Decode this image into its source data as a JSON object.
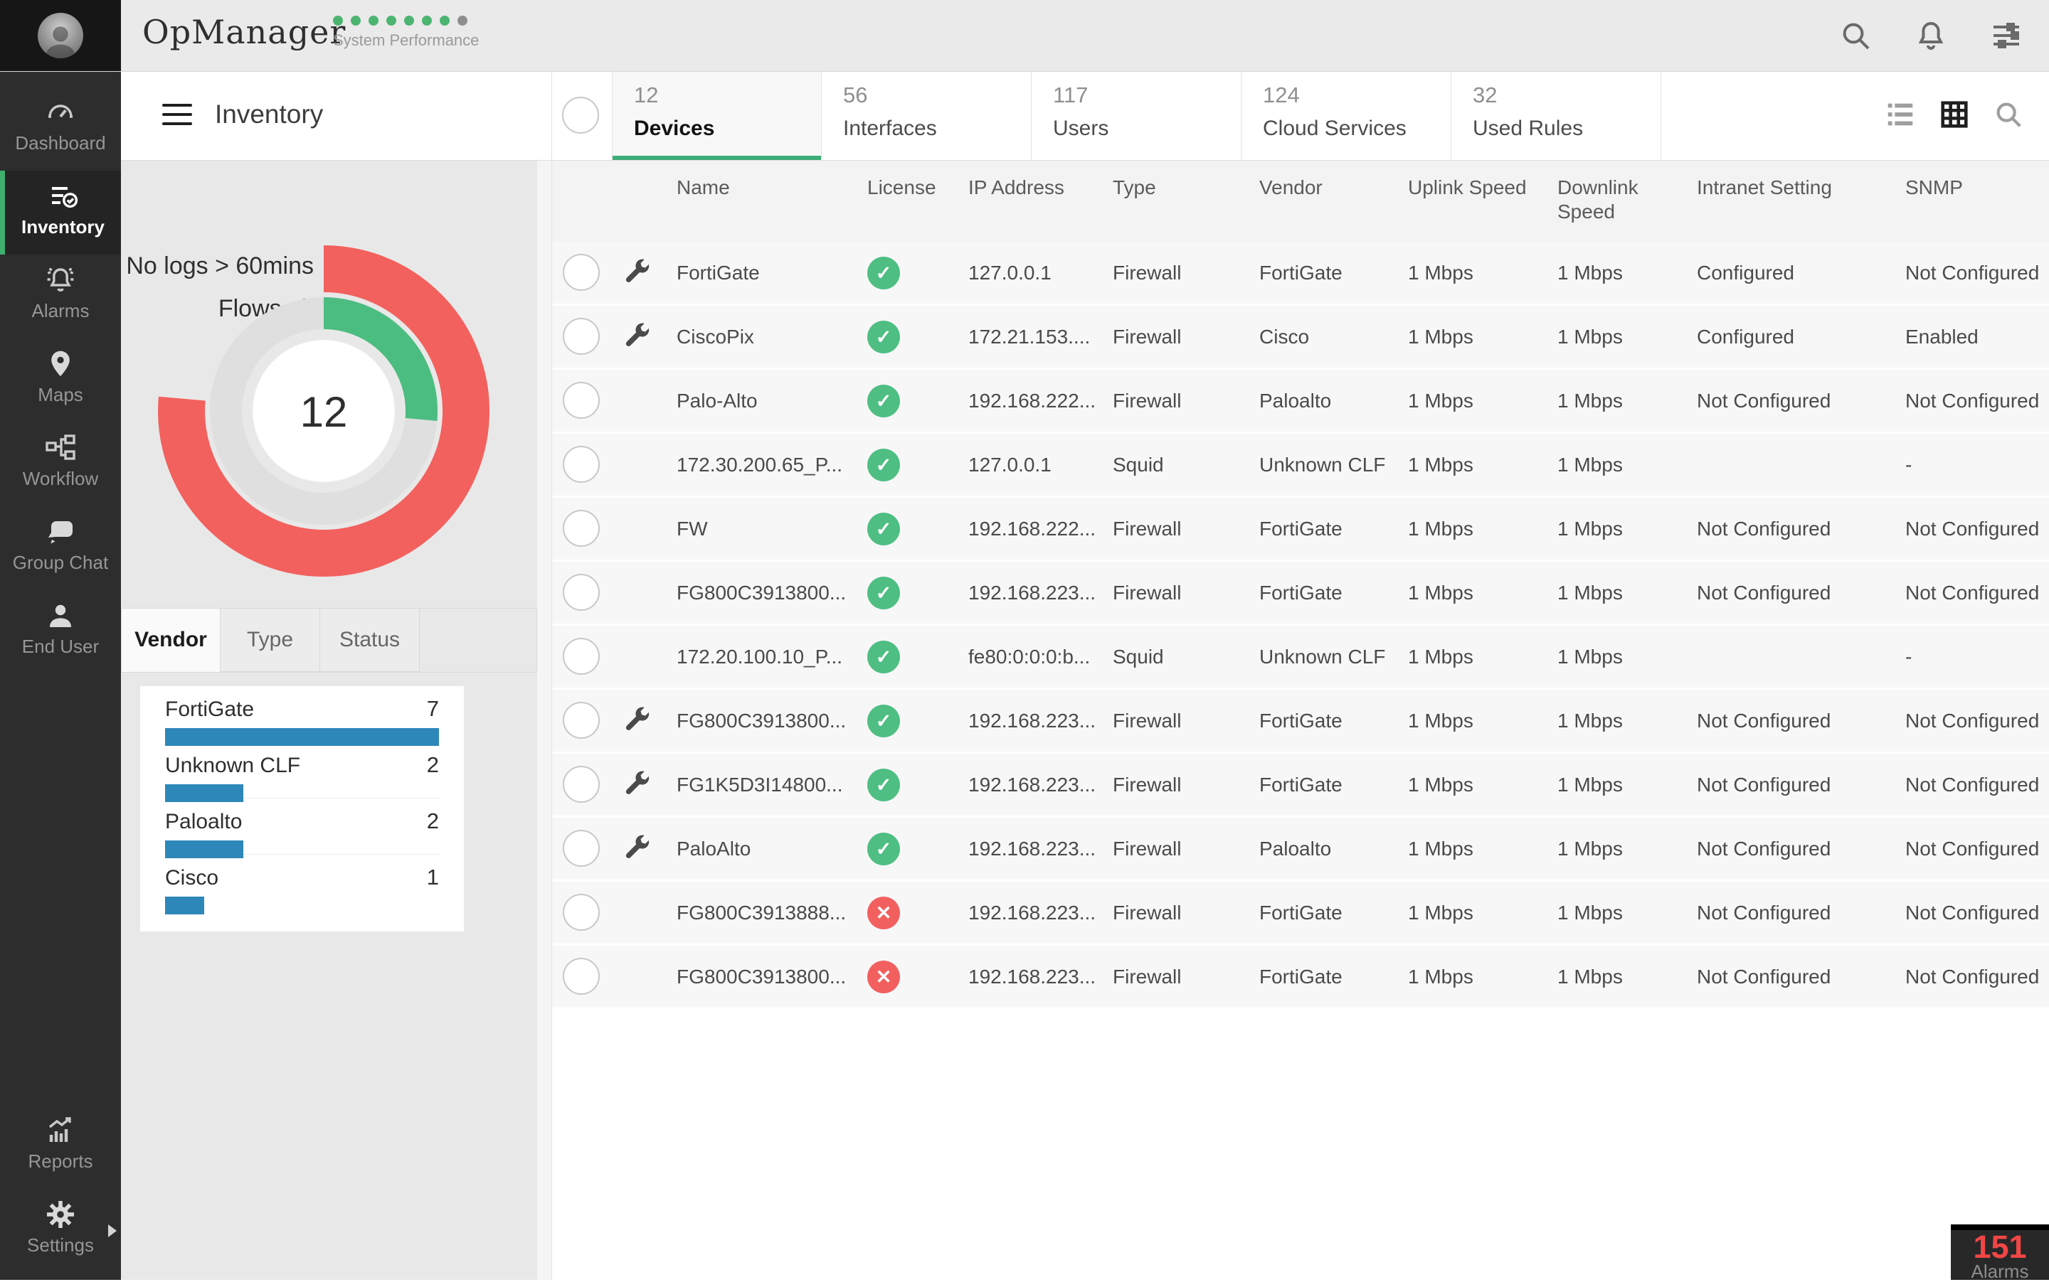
{
  "app": {
    "logo": "OpManager",
    "tagline": "System Performance",
    "performance_dots": {
      "total": 8,
      "active": 7,
      "active_color": "#4cb471",
      "inactive_color": "#8e8e8e"
    }
  },
  "topbar": {
    "icons": [
      "search",
      "notifications",
      "preferences"
    ]
  },
  "sidebar": {
    "items": [
      {
        "label": "Dashboard",
        "icon": "gauge",
        "active": false
      },
      {
        "label": "Inventory",
        "icon": "inventory",
        "active": true
      },
      {
        "label": "Alarms",
        "icon": "bell",
        "active": false
      },
      {
        "label": "Maps",
        "icon": "pin",
        "active": false
      },
      {
        "label": "Workflow",
        "icon": "workflow",
        "active": false
      },
      {
        "label": "Group Chat",
        "icon": "chat",
        "active": false
      },
      {
        "label": "End User",
        "icon": "user",
        "active": false
      }
    ],
    "bottom_items": [
      {
        "label": "Reports",
        "icon": "reports",
        "active": false,
        "has_submenu_arrow": false
      },
      {
        "label": "Settings",
        "icon": "gear",
        "active": false,
        "has_submenu_arrow": true
      }
    ]
  },
  "header": {
    "title": "Inventory"
  },
  "view_switcher": [
    {
      "name": "list-view",
      "active": false
    },
    {
      "name": "grid-view",
      "active": true
    },
    {
      "name": "search",
      "active": false
    }
  ],
  "tabs": [
    {
      "count": "12",
      "label": "Devices",
      "active": true
    },
    {
      "count": "56",
      "label": "Interfaces",
      "active": false
    },
    {
      "count": "117",
      "label": "Users",
      "active": false
    },
    {
      "count": "124",
      "label": "Cloud Services",
      "active": false
    },
    {
      "count": "32",
      "label": "Used Rules",
      "active": false
    }
  ],
  "chart_data": [
    {
      "type": "donut",
      "center_label": "12",
      "rings": [
        {
          "label": "No logs > 60mins",
          "color": "#f2615e",
          "arc_degrees": 275,
          "position": "outer"
        },
        {
          "label": "Flows ok",
          "color": "#4cbd81",
          "arc_degrees": 95,
          "position": "inner"
        }
      ],
      "legend_position": "top-left"
    },
    {
      "type": "bar",
      "orientation": "horizontal",
      "group_tabs": [
        "Vendor",
        "Type",
        "Status"
      ],
      "active_tab": "Vendor",
      "categories": [
        "FortiGate",
        "Unknown CLF",
        "Paloalto",
        "Cisco"
      ],
      "values": [
        7,
        2,
        2,
        1
      ],
      "bar_color": "#2e87b9",
      "xlim": [
        0,
        7
      ]
    }
  ],
  "table": {
    "columns": [
      "Name",
      "License",
      "IP Address",
      "Type",
      "Vendor",
      "Uplink Speed",
      "Downlink Speed",
      "Intranet Setting",
      "SNMP"
    ],
    "rows": [
      {
        "wrench": true,
        "name": "FortiGate",
        "license": "ok",
        "ip": "127.0.0.1",
        "type": "Firewall",
        "vendor": "FortiGate",
        "uplink": "1 Mbps",
        "downlink": "1 Mbps",
        "intranet": "Configured",
        "snmp": "Not Configured"
      },
      {
        "wrench": true,
        "name": "CiscoPix",
        "license": "ok",
        "ip": "172.21.153....",
        "type": "Firewall",
        "vendor": "Cisco",
        "uplink": "1 Mbps",
        "downlink": "1 Mbps",
        "intranet": "Configured",
        "snmp": "Enabled"
      },
      {
        "wrench": false,
        "name": "Palo-Alto",
        "license": "ok",
        "ip": "192.168.222...",
        "type": "Firewall",
        "vendor": "Paloalto",
        "uplink": "1 Mbps",
        "downlink": "1 Mbps",
        "intranet": "Not Configured",
        "snmp": "Not Configured"
      },
      {
        "wrench": false,
        "name": "172.30.200.65_P...",
        "license": "ok",
        "ip": "127.0.0.1",
        "type": "Squid",
        "vendor": "Unknown CLF",
        "uplink": "1 Mbps",
        "downlink": "1 Mbps",
        "intranet": "",
        "snmp": "-"
      },
      {
        "wrench": false,
        "name": "FW",
        "license": "ok",
        "ip": "192.168.222...",
        "type": "Firewall",
        "vendor": "FortiGate",
        "uplink": "1 Mbps",
        "downlink": "1 Mbps",
        "intranet": "Not Configured",
        "snmp": "Not Configured"
      },
      {
        "wrench": false,
        "name": "FG800C3913800...",
        "license": "ok",
        "ip": "192.168.223...",
        "type": "Firewall",
        "vendor": "FortiGate",
        "uplink": "1 Mbps",
        "downlink": "1 Mbps",
        "intranet": "Not Configured",
        "snmp": "Not Configured"
      },
      {
        "wrench": false,
        "name": "172.20.100.10_P...",
        "license": "ok",
        "ip": "fe80:0:0:0:b...",
        "type": "Squid",
        "vendor": "Unknown CLF",
        "uplink": "1 Mbps",
        "downlink": "1 Mbps",
        "intranet": "",
        "snmp": "-"
      },
      {
        "wrench": true,
        "name": "FG800C3913800...",
        "license": "ok",
        "ip": "192.168.223...",
        "type": "Firewall",
        "vendor": "FortiGate",
        "uplink": "1 Mbps",
        "downlink": "1 Mbps",
        "intranet": "Not Configured",
        "snmp": "Not Configured"
      },
      {
        "wrench": true,
        "name": "FG1K5D3I14800...",
        "license": "ok",
        "ip": "192.168.223...",
        "type": "Firewall",
        "vendor": "FortiGate",
        "uplink": "1 Mbps",
        "downlink": "1 Mbps",
        "intranet": "Not Configured",
        "snmp": "Not Configured"
      },
      {
        "wrench": true,
        "name": "PaloAlto",
        "license": "ok",
        "ip": "192.168.223...",
        "type": "Firewall",
        "vendor": "Paloalto",
        "uplink": "1 Mbps",
        "downlink": "1 Mbps",
        "intranet": "Not Configured",
        "snmp": "Not Configured"
      },
      {
        "wrench": false,
        "name": "FG800C3913888...",
        "license": "error",
        "ip": "192.168.223...",
        "type": "Firewall",
        "vendor": "FortiGate",
        "uplink": "1 Mbps",
        "downlink": "1 Mbps",
        "intranet": "Not Configured",
        "snmp": "Not Configured"
      },
      {
        "wrench": false,
        "name": "FG800C3913800...",
        "license": "error",
        "ip": "192.168.223...",
        "type": "Firewall",
        "vendor": "FortiGate",
        "uplink": "1 Mbps",
        "downlink": "1 Mbps",
        "intranet": "Not Configured",
        "snmp": "Not Configured"
      }
    ]
  },
  "alarm_badge": {
    "count": "151",
    "label": "Alarms"
  }
}
